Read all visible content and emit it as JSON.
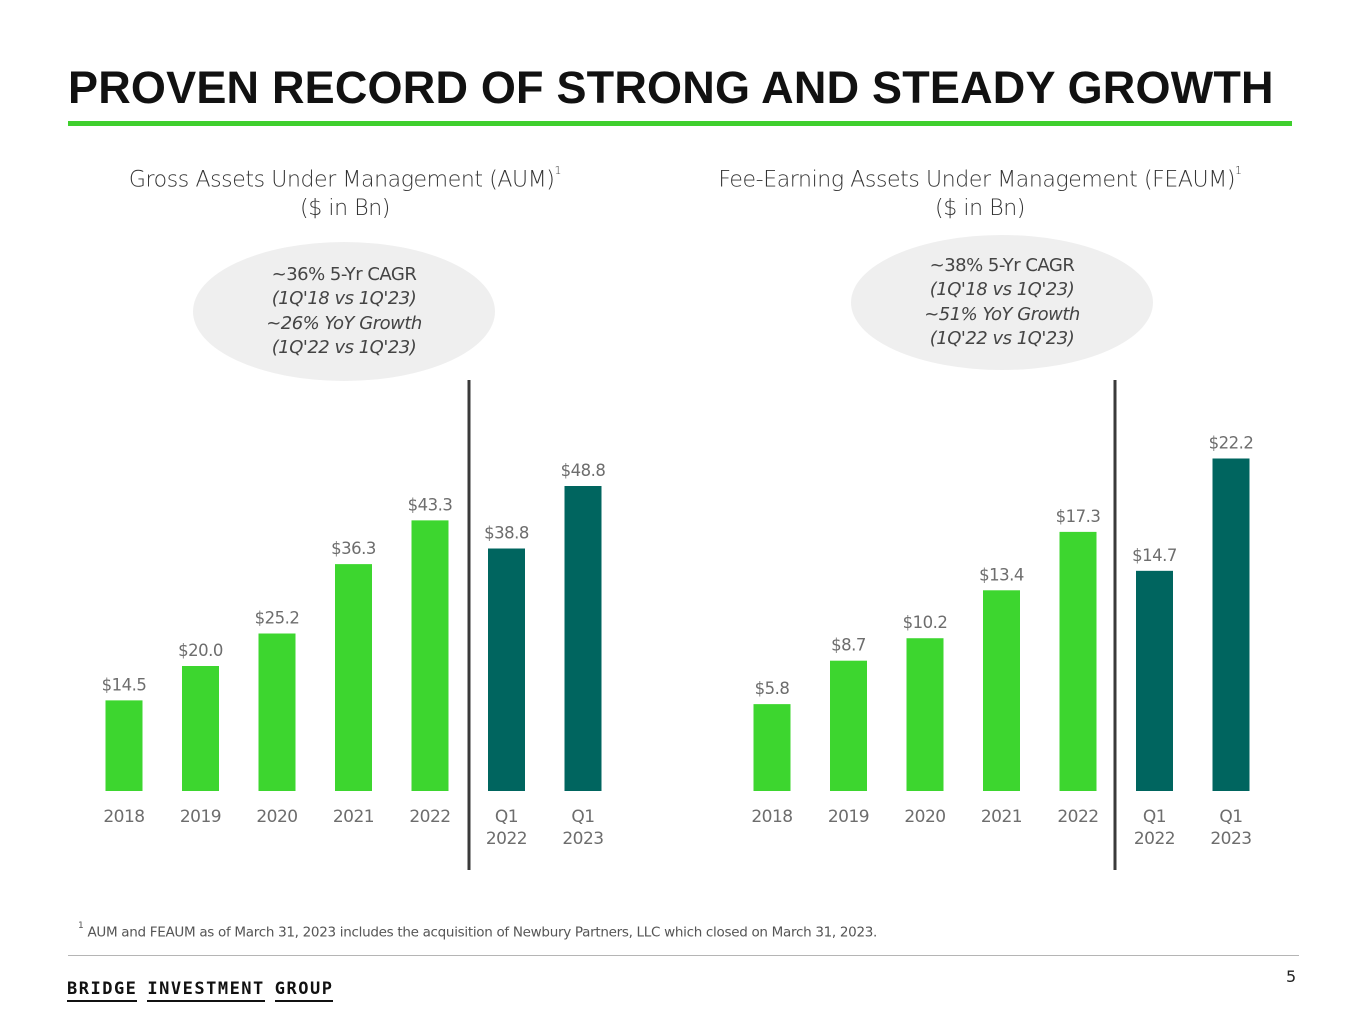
{
  "page": {
    "title": "PROVEN RECORD OF STRONG AND STEADY GROWTH",
    "page_number": "5",
    "footnote_marker": "1",
    "footnote": "AUM and FEAUM as of March 31, 2023 includes the acquisition of Newbury Partners, LLC which closed on March 31, 2023.",
    "logo_words": [
      "BRIDGE",
      "INVESTMENT",
      "GROUP"
    ],
    "colors": {
      "accent_green": "#3fcf2e",
      "annual_bar": "#3dd62f",
      "quarterly_bar": "#00655f",
      "divider": "#3a3a3a",
      "label_text": "#6d6d6d"
    }
  },
  "chart_data": [
    {
      "type": "bar",
      "title": "Gross Assets Under Management (AUM)",
      "title_superscript": "1",
      "subtitle": "($ in Bn)",
      "callout": {
        "line1": "~36% 5-Yr CAGR",
        "line2": "(1Q'18 vs 1Q'23)",
        "line3": "~26% YoY Growth",
        "line4": "(1Q'22 vs 1Q'23)"
      },
      "categories": [
        "2018",
        "2019",
        "2020",
        "2021",
        "2022",
        "Q1\n2022",
        "Q1\n2023"
      ],
      "values": [
        14.5,
        20.0,
        25.2,
        36.3,
        43.3,
        38.8,
        48.8
      ],
      "data_labels": [
        "$14.5",
        "$20.0",
        "$25.2",
        "$36.3",
        "$43.3",
        "$38.8",
        "$48.8"
      ],
      "bar_groups": [
        "annual",
        "annual",
        "annual",
        "annual",
        "annual",
        "quarterly",
        "quarterly"
      ],
      "divider_after_index": 4,
      "xlabel": "",
      "ylabel": "",
      "ylim": [
        0,
        52
      ],
      "grid": false,
      "legend": "none"
    },
    {
      "type": "bar",
      "title": "Fee-Earning Assets Under Management (FEAUM)",
      "title_superscript": "1",
      "subtitle": "($ in Bn)",
      "callout": {
        "line1": "~38% 5-Yr CAGR",
        "line2": "(1Q'18 vs 1Q'23)",
        "line3": "~51% YoY Growth",
        "line4": "(1Q'22 vs 1Q'23)"
      },
      "categories": [
        "2018",
        "2019",
        "2020",
        "2021",
        "2022",
        "Q1\n2022",
        "Q1\n2023"
      ],
      "values": [
        5.8,
        8.7,
        10.2,
        13.4,
        17.3,
        14.7,
        22.2
      ],
      "data_labels": [
        "$5.8",
        "$8.7",
        "$10.2",
        "$13.4",
        "$17.3",
        "$14.7",
        "$22.2"
      ],
      "bar_groups": [
        "annual",
        "annual",
        "annual",
        "annual",
        "annual",
        "quarterly",
        "quarterly"
      ],
      "divider_after_index": 4,
      "xlabel": "",
      "ylabel": "",
      "ylim": [
        0,
        22.5
      ],
      "grid": false,
      "legend": "none"
    }
  ]
}
